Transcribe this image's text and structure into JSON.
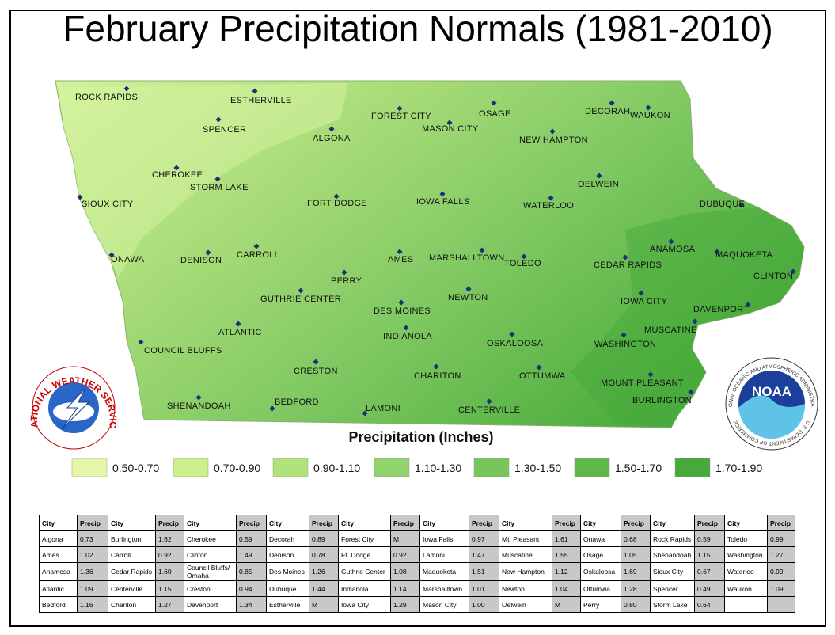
{
  "title": "February Precipitation Normals (1981-2010)",
  "map": {
    "cities": [
      "ROCK RAPIDS",
      "ESTHERVILLE",
      "FOREST CITY",
      "OSAGE",
      "DECORAH",
      "WAUKON",
      "SPENCER",
      "MASON CITY",
      "ALGONA",
      "NEW HAMPTON",
      "CHEROKEE",
      "STORM LAKE",
      "OELWEIN",
      "SIOUX CITY",
      "FORT DODGE",
      "IOWA FALLS",
      "WATERLOO",
      "DUBUQUE",
      "ANAMOSA",
      "MAQUOKETA",
      "ONAWA",
      "DENISON",
      "CARROLL",
      "AMES",
      "MARSHALLTOWN",
      "TOLEDO",
      "CEDAR RAPIDS",
      "CLINTON",
      "PERRY",
      "GUTHRIE CENTER",
      "NEWTON",
      "IOWA CITY",
      "DES MOINES",
      "DAVENPORT",
      "ATLANTIC",
      "MUSCATINE",
      "INDIANOLA",
      "OSKALOOSA",
      "WASHINGTON",
      "COUNCIL BLUFFS",
      "CRESTON",
      "CHARITON",
      "OTTUMWA",
      "MOUNT PLEASANT",
      "BURLINGTON",
      "SHENANDOAH",
      "BEDFORD",
      "LAMONI",
      "CENTERVILLE"
    ]
  },
  "logos": {
    "nws": "NATIONAL WEATHER SERVICE",
    "noaa": "NOAA",
    "noaa_ring": "NATIONAL OCEANIC AND ATMOSPHERIC ADMINISTRATION",
    "noaa_dept": "U.S. DEPARTMENT OF COMMERCE"
  },
  "legend": {
    "title": "Precipitation (Inches)",
    "items": [
      {
        "label": "0.50-0.70",
        "color": "#e4f7a8"
      },
      {
        "label": "0.70-0.90",
        "color": "#cbef8c"
      },
      {
        "label": "0.90-1.10",
        "color": "#b0e37b"
      },
      {
        "label": "1.10-1.30",
        "color": "#92d46c"
      },
      {
        "label": "1.30-1.50",
        "color": "#78c65b"
      },
      {
        "label": "1.50-1.70",
        "color": "#5db749"
      },
      {
        "label": "1.70-1.90",
        "color": "#47a93a"
      }
    ]
  },
  "table": {
    "header": [
      "City",
      "Precip",
      "City",
      "Precip",
      "City",
      "Precip",
      "City",
      "Precip",
      "City",
      "Precip",
      "City",
      "Precip",
      "City",
      "Precip",
      "City",
      "Precip",
      "City",
      "Precip",
      "City",
      "Precip"
    ],
    "rows": [
      [
        "Algona",
        "0.73",
        "Burlington",
        "1.62",
        "Cherokee",
        "0.59",
        "Decorah",
        "0.89",
        "Forest City",
        "M",
        "Iowa Falls",
        "0.97",
        "Mt. Pleasant",
        "1.61",
        "Onawa",
        "0.68",
        "Rock Rapids",
        "0.59",
        "Toledo",
        "0.99"
      ],
      [
        "Ames",
        "1.02",
        "Carroll",
        "0.92",
        "Clinton",
        "1.49",
        "Denison",
        "0.78",
        "Ft. Dodge",
        "0.92",
        "Lamoni",
        "1.47",
        "Muscatine",
        "1.55",
        "Osage",
        "1.05",
        "Shenandoah",
        "1.15",
        "Washington",
        "1.27"
      ],
      [
        "Anamosa",
        "1.36",
        "Cedar Rapids",
        "1.60",
        "Council Bluffs/ Omaha",
        "0.85",
        "Des Moines",
        "1.26",
        "Guthrie Center",
        "1.08",
        "Maquoketa",
        "1.51",
        "New Hampton",
        "1.12",
        "Oskaloosa",
        "1.69",
        "Sioux City",
        "0.67",
        "Waterloo",
        "0.99"
      ],
      [
        "Atlantic",
        "1.09",
        "Centerville",
        "1.15",
        "Creston",
        "0.94",
        "Dubuque",
        "1.44",
        "Indianola",
        "1.14",
        "Marshalltown",
        "1.01",
        "Newton",
        "1.04",
        "Ottumwa",
        "1.28",
        "Spencer",
        "0.49",
        "Waukon",
        "1.09"
      ],
      [
        "Bedford",
        "1.16",
        "Chariton",
        "1.27",
        "Davenport",
        "1.34",
        "Estherville",
        "M",
        "Iowa City",
        "1.29",
        "Mason City",
        "1.00",
        "Oelwein",
        "M",
        "Perry",
        "0.80",
        "Storm Lake",
        "0.64"
      ]
    ]
  }
}
